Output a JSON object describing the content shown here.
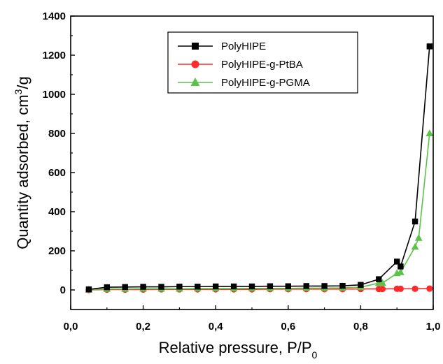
{
  "chart_data": {
    "type": "line",
    "title": "",
    "xlabel": "Relative pressure, P/P",
    "xlabel_subscript": "0",
    "ylabel": "Quantity adsorbed, cm",
    "ylabel_superscript": "3",
    "ylabel_suffix": "/g",
    "xlim": [
      0.0,
      1.0
    ],
    "ylim": [
      -100,
      1400
    ],
    "xticks": [
      0.0,
      0.2,
      0.4,
      0.6,
      0.8,
      1.0
    ],
    "xtick_labels": [
      "0,0",
      "0,2",
      "0,4",
      "0,6",
      "0,8",
      "1,0"
    ],
    "yticks": [
      0,
      200,
      400,
      600,
      800,
      1000,
      1200,
      1400
    ],
    "ytick_labels": [
      "0",
      "200",
      "400",
      "600",
      "800",
      "1000",
      "1200",
      "1400"
    ],
    "grid": false,
    "legend_position": "top-right",
    "series": [
      {
        "name": "PolyHIPE",
        "color": "#000000",
        "marker": "square",
        "x": [
          0.05,
          0.1,
          0.15,
          0.2,
          0.25,
          0.3,
          0.35,
          0.4,
          0.45,
          0.5,
          0.55,
          0.6,
          0.65,
          0.7,
          0.75,
          0.8,
          0.85,
          0.9,
          0.91,
          0.95,
          0.99
        ],
        "y": [
          3,
          14,
          15,
          16,
          16,
          17,
          17,
          18,
          18,
          18,
          19,
          19,
          20,
          20,
          21,
          26,
          55,
          145,
          120,
          350,
          1245
        ]
      },
      {
        "name": "PolyHIPE-g-PtBA",
        "color": "#ff2a2a",
        "marker": "circle",
        "x": [
          0.05,
          0.1,
          0.15,
          0.2,
          0.25,
          0.3,
          0.35,
          0.4,
          0.45,
          0.5,
          0.55,
          0.6,
          0.65,
          0.7,
          0.75,
          0.8,
          0.85,
          0.86,
          0.9,
          0.91,
          0.95,
          0.99
        ],
        "y": [
          0,
          2,
          2,
          2,
          3,
          3,
          3,
          3,
          3,
          3,
          4,
          4,
          4,
          4,
          4,
          5,
          5,
          5,
          6,
          6,
          6,
          7
        ]
      },
      {
        "name": "PolyHIPE-g-PGMA",
        "color": "#5cc24a",
        "marker": "triangle",
        "x": [
          0.05,
          0.1,
          0.15,
          0.2,
          0.25,
          0.3,
          0.35,
          0.4,
          0.45,
          0.5,
          0.55,
          0.6,
          0.65,
          0.7,
          0.75,
          0.8,
          0.85,
          0.86,
          0.9,
          0.91,
          0.95,
          0.96,
          0.99
        ],
        "y": [
          1,
          5,
          5,
          6,
          6,
          6,
          7,
          7,
          7,
          8,
          8,
          8,
          9,
          9,
          10,
          14,
          35,
          35,
          85,
          90,
          220,
          265,
          800
        ]
      }
    ]
  }
}
